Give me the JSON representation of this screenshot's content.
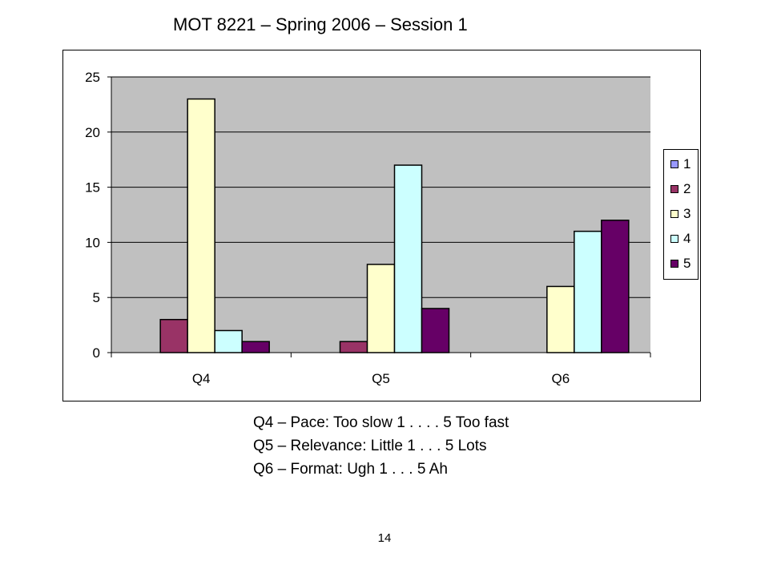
{
  "slide": {
    "title": "MOT 8221 – Spring 2006 – Session 1",
    "notes": [
      "Q4 – Pace: Too slow 1 . . . . 5 Too fast",
      "Q5 – Relevance: Little 1 . . . 5 Lots",
      "Q6 – Format: Ugh 1 . . . 5 Ah"
    ],
    "page_number": "14"
  },
  "chart_data": {
    "type": "bar",
    "title": "",
    "xlabel": "",
    "ylabel": "",
    "categories": [
      "Q4",
      "Q5",
      "Q6"
    ],
    "ylim": [
      0,
      25
    ],
    "yticks": [
      0,
      5,
      10,
      15,
      20,
      25
    ],
    "grid": true,
    "legend_position": "right",
    "plot_background": "#c0c0c0",
    "series": [
      {
        "name": "1",
        "color": "#9999ff",
        "values": [
          0,
          0,
          0
        ]
      },
      {
        "name": "2",
        "color": "#993366",
        "values": [
          3,
          1,
          0
        ]
      },
      {
        "name": "3",
        "color": "#ffffcc",
        "values": [
          23,
          8,
          6
        ]
      },
      {
        "name": "4",
        "color": "#ccffff",
        "values": [
          2,
          17,
          11
        ]
      },
      {
        "name": "5",
        "color": "#660066",
        "values": [
          1,
          4,
          12
        ]
      }
    ]
  }
}
